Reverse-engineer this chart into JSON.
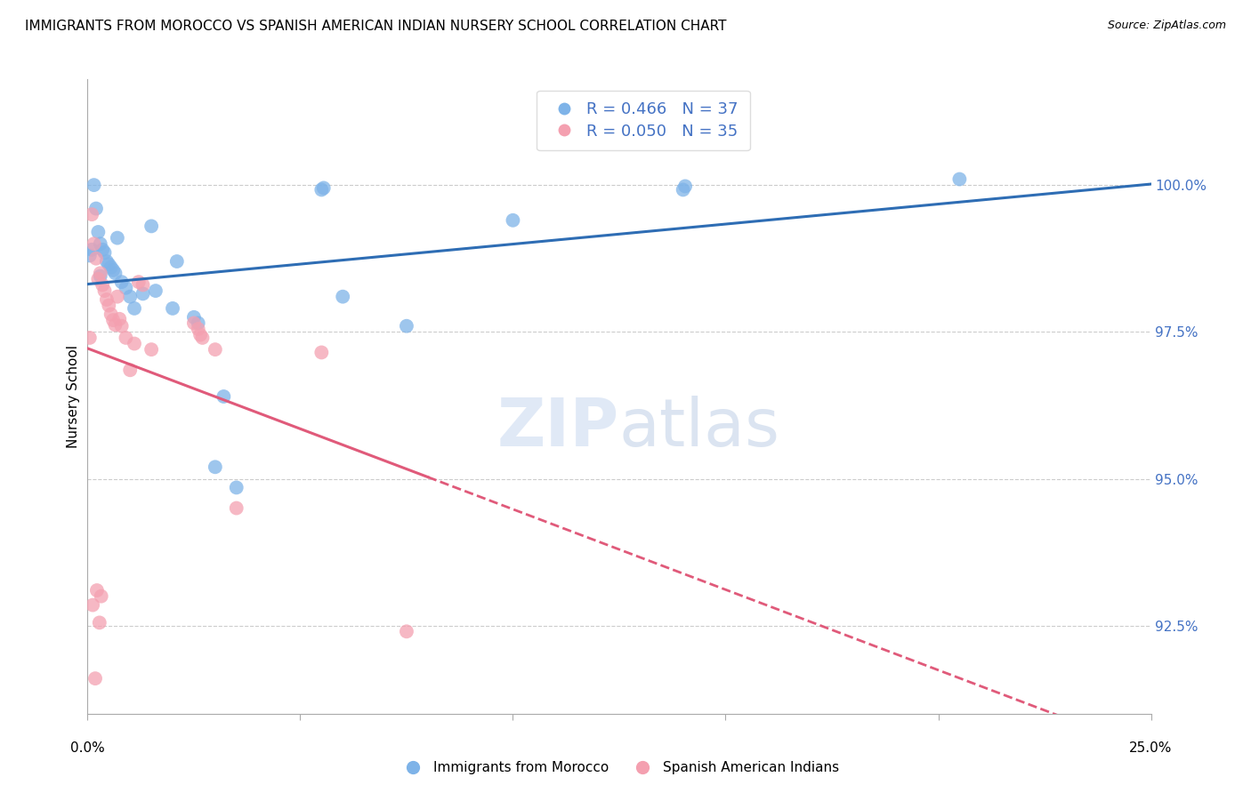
{
  "title": "IMMIGRANTS FROM MOROCCO VS SPANISH AMERICAN INDIAN NURSERY SCHOOL CORRELATION CHART",
  "source": "Source: ZipAtlas.com",
  "ylabel": "Nursery School",
  "ytick_labels": [
    "92.5%",
    "95.0%",
    "97.5%",
    "100.0%"
  ],
  "ytick_values": [
    92.5,
    95.0,
    97.5,
    100.0
  ],
  "ylim": [
    91.0,
    101.8
  ],
  "xlim": [
    0.0,
    25.0
  ],
  "legend_blue_r": "R = 0.466",
  "legend_blue_n": "N = 37",
  "legend_pink_r": "R = 0.050",
  "legend_pink_n": "N = 35",
  "blue_color": "#7EB3E8",
  "pink_color": "#F4A0B0",
  "blue_line_color": "#2E6DB4",
  "pink_line_color": "#E05A7A",
  "blue_dots_x": [
    0.05,
    0.15,
    0.2,
    0.25,
    0.3,
    0.35,
    0.4,
    0.45,
    0.5,
    0.55,
    0.6,
    0.65,
    0.7,
    0.8,
    0.9,
    1.0,
    1.1,
    1.3,
    1.5,
    1.6,
    2.0,
    2.1,
    2.5,
    2.6,
    3.0,
    3.2,
    3.5,
    5.5,
    5.55,
    6.0,
    7.5,
    10.0,
    14.0,
    14.05,
    20.5,
    0.1,
    0.3
  ],
  "blue_dots_y": [
    98.8,
    100.0,
    99.6,
    99.2,
    99.0,
    98.9,
    98.85,
    98.7,
    98.65,
    98.6,
    98.55,
    98.5,
    99.1,
    98.35,
    98.25,
    98.1,
    97.9,
    98.15,
    99.3,
    98.2,
    97.9,
    98.7,
    97.75,
    97.65,
    95.2,
    96.4,
    94.85,
    99.92,
    99.95,
    98.1,
    97.6,
    99.4,
    99.92,
    99.98,
    100.1,
    98.9,
    98.45
  ],
  "pink_dots_x": [
    0.05,
    0.1,
    0.15,
    0.2,
    0.25,
    0.3,
    0.35,
    0.4,
    0.45,
    0.5,
    0.55,
    0.6,
    0.65,
    0.7,
    0.75,
    0.8,
    0.9,
    1.0,
    1.1,
    1.2,
    1.3,
    1.5,
    2.5,
    2.6,
    2.65,
    2.7,
    3.0,
    3.5,
    5.5,
    7.5,
    0.12,
    0.22,
    0.32,
    0.18,
    0.28
  ],
  "pink_dots_y": [
    97.4,
    99.5,
    99.0,
    98.75,
    98.4,
    98.5,
    98.3,
    98.2,
    98.05,
    97.95,
    97.8,
    97.7,
    97.62,
    98.1,
    97.72,
    97.6,
    97.4,
    96.85,
    97.3,
    98.35,
    98.3,
    97.2,
    97.65,
    97.55,
    97.45,
    97.4,
    97.2,
    94.5,
    97.15,
    92.4,
    92.85,
    93.1,
    93.0,
    91.6,
    92.55
  ]
}
